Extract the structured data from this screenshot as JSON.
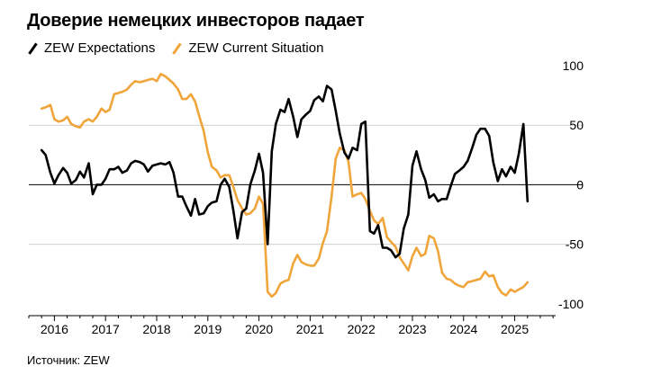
{
  "header": {
    "title": "Доверие немецких инвесторов падает"
  },
  "legend": [
    {
      "label": "ZEW Expectations",
      "color": "#000000"
    },
    {
      "label": "ZEW Current Situation",
      "color": "#f0a53a"
    }
  ],
  "footer": {
    "source": "Источник: ZEW"
  },
  "chart_data": {
    "type": "line",
    "title": "Доверие немецких инвесторов падает",
    "xlim": [
      2015.5,
      2025.8
    ],
    "ylim": [
      -110,
      100
    ],
    "y_ticks": [
      100,
      50,
      0,
      -50,
      -100
    ],
    "y_tick_labels": [
      "100",
      "50",
      "0",
      "-50",
      "-100"
    ],
    "x_ticks": [
      2016,
      2017,
      2018,
      2019,
      2020,
      2021,
      2022,
      2023,
      2024,
      2025
    ],
    "x_tick_labels": [
      "2016",
      "2017",
      "2018",
      "2019",
      "2020",
      "2021",
      "2022",
      "2023",
      "2024",
      "2025"
    ],
    "grid": "horizontal at 50 and -50; zero line emphasized",
    "y_axis_position": "right",
    "series": [
      {
        "name": "ZEW Expectations",
        "color": "#000000",
        "points": [
          [
            2015.75,
            29
          ],
          [
            2015.83,
            25
          ],
          [
            2015.92,
            10
          ],
          [
            2016.0,
            1
          ],
          [
            2016.08,
            8
          ],
          [
            2016.17,
            14
          ],
          [
            2016.25,
            10
          ],
          [
            2016.33,
            1
          ],
          [
            2016.42,
            4
          ],
          [
            2016.5,
            11
          ],
          [
            2016.58,
            6
          ],
          [
            2016.67,
            18
          ],
          [
            2016.75,
            -8
          ],
          [
            2016.83,
            0
          ],
          [
            2016.92,
            0
          ],
          [
            2017.0,
            5
          ],
          [
            2017.08,
            13
          ],
          [
            2017.17,
            13
          ],
          [
            2017.25,
            15
          ],
          [
            2017.33,
            10
          ],
          [
            2017.42,
            12
          ],
          [
            2017.5,
            18
          ],
          [
            2017.58,
            20
          ],
          [
            2017.67,
            19
          ],
          [
            2017.75,
            17
          ],
          [
            2017.83,
            11
          ],
          [
            2017.92,
            16
          ],
          [
            2018.0,
            17
          ],
          [
            2018.08,
            18
          ],
          [
            2018.17,
            17
          ],
          [
            2018.25,
            19
          ],
          [
            2018.33,
            10
          ],
          [
            2018.42,
            -10
          ],
          [
            2018.5,
            -10
          ],
          [
            2018.58,
            -18
          ],
          [
            2018.67,
            -26
          ],
          [
            2018.75,
            -12
          ],
          [
            2018.83,
            -25
          ],
          [
            2018.92,
            -24
          ],
          [
            2019.0,
            -18
          ],
          [
            2019.08,
            -15
          ],
          [
            2019.17,
            -14
          ],
          [
            2019.25,
            0
          ],
          [
            2019.33,
            5
          ],
          [
            2019.42,
            -2
          ],
          [
            2019.5,
            -22
          ],
          [
            2019.58,
            -45
          ],
          [
            2019.67,
            -23
          ],
          [
            2019.75,
            -20
          ],
          [
            2019.83,
            0
          ],
          [
            2019.92,
            12
          ],
          [
            2020.0,
            26
          ],
          [
            2020.08,
            10
          ],
          [
            2020.17,
            -50
          ],
          [
            2020.25,
            28
          ],
          [
            2020.33,
            51
          ],
          [
            2020.42,
            63
          ],
          [
            2020.5,
            61
          ],
          [
            2020.58,
            72
          ],
          [
            2020.67,
            57
          ],
          [
            2020.75,
            40
          ],
          [
            2020.83,
            55
          ],
          [
            2020.92,
            59
          ],
          [
            2021.0,
            62
          ],
          [
            2021.08,
            71
          ],
          [
            2021.17,
            74
          ],
          [
            2021.25,
            70
          ],
          [
            2021.33,
            83
          ],
          [
            2021.42,
            80
          ],
          [
            2021.5,
            62
          ],
          [
            2021.58,
            43
          ],
          [
            2021.67,
            27
          ],
          [
            2021.75,
            22
          ],
          [
            2021.83,
            31
          ],
          [
            2021.92,
            29
          ],
          [
            2022.0,
            51
          ],
          [
            2022.08,
            53
          ],
          [
            2022.17,
            -39
          ],
          [
            2022.25,
            -41
          ],
          [
            2022.33,
            -34
          ],
          [
            2022.42,
            -53
          ],
          [
            2022.5,
            -53
          ],
          [
            2022.58,
            -55
          ],
          [
            2022.67,
            -61
          ],
          [
            2022.75,
            -58
          ],
          [
            2022.83,
            -37
          ],
          [
            2022.92,
            -25
          ],
          [
            2023.0,
            16
          ],
          [
            2023.08,
            28
          ],
          [
            2023.17,
            13
          ],
          [
            2023.25,
            4
          ],
          [
            2023.33,
            -11
          ],
          [
            2023.42,
            -8
          ],
          [
            2023.5,
            -14
          ],
          [
            2023.58,
            -12
          ],
          [
            2023.67,
            -12
          ],
          [
            2023.75,
            -1
          ],
          [
            2023.83,
            9
          ],
          [
            2023.92,
            12
          ],
          [
            2024.0,
            15
          ],
          [
            2024.08,
            20
          ],
          [
            2024.17,
            31
          ],
          [
            2024.25,
            42
          ],
          [
            2024.33,
            47
          ],
          [
            2024.42,
            47
          ],
          [
            2024.5,
            41
          ],
          [
            2024.58,
            19
          ],
          [
            2024.67,
            3
          ],
          [
            2024.75,
            13
          ],
          [
            2024.83,
            7
          ],
          [
            2024.92,
            15
          ],
          [
            2025.0,
            10
          ],
          [
            2025.08,
            26
          ],
          [
            2025.17,
            51
          ],
          [
            2025.25,
            -14
          ]
        ]
      },
      {
        "name": "ZEW Current Situation",
        "color": "#f0a53a",
        "points": [
          [
            2015.75,
            64
          ],
          [
            2015.83,
            65
          ],
          [
            2015.92,
            67
          ],
          [
            2016.0,
            55
          ],
          [
            2016.08,
            53
          ],
          [
            2016.17,
            54
          ],
          [
            2016.25,
            57
          ],
          [
            2016.33,
            51
          ],
          [
            2016.42,
            49
          ],
          [
            2016.5,
            48
          ],
          [
            2016.58,
            53
          ],
          [
            2016.67,
            55
          ],
          [
            2016.75,
            53
          ],
          [
            2016.83,
            57
          ],
          [
            2016.92,
            64
          ],
          [
            2017.0,
            61
          ],
          [
            2017.08,
            63
          ],
          [
            2017.17,
            76
          ],
          [
            2017.25,
            77
          ],
          [
            2017.33,
            78
          ],
          [
            2017.42,
            80
          ],
          [
            2017.5,
            84
          ],
          [
            2017.58,
            87
          ],
          [
            2017.67,
            86
          ],
          [
            2017.75,
            87
          ],
          [
            2017.83,
            88
          ],
          [
            2017.92,
            89
          ],
          [
            2018.0,
            87
          ],
          [
            2018.08,
            93
          ],
          [
            2018.17,
            91
          ],
          [
            2018.25,
            88
          ],
          [
            2018.33,
            85
          ],
          [
            2018.42,
            80
          ],
          [
            2018.5,
            72
          ],
          [
            2018.58,
            72
          ],
          [
            2018.67,
            76
          ],
          [
            2018.75,
            70
          ],
          [
            2018.83,
            58
          ],
          [
            2018.92,
            45
          ],
          [
            2019.0,
            27
          ],
          [
            2019.08,
            15
          ],
          [
            2019.17,
            12
          ],
          [
            2019.25,
            6
          ],
          [
            2019.33,
            8
          ],
          [
            2019.42,
            8
          ],
          [
            2019.5,
            -2
          ],
          [
            2019.58,
            -13
          ],
          [
            2019.67,
            -20
          ],
          [
            2019.75,
            -25
          ],
          [
            2019.83,
            -24
          ],
          [
            2019.92,
            -20
          ],
          [
            2020.0,
            -10
          ],
          [
            2020.08,
            -16
          ],
          [
            2020.17,
            -90
          ],
          [
            2020.25,
            -94
          ],
          [
            2020.33,
            -91
          ],
          [
            2020.42,
            -83
          ],
          [
            2020.5,
            -81
          ],
          [
            2020.58,
            -80
          ],
          [
            2020.67,
            -66
          ],
          [
            2020.75,
            -59
          ],
          [
            2020.83,
            -65
          ],
          [
            2020.92,
            -67
          ],
          [
            2021.0,
            -68
          ],
          [
            2021.08,
            -68
          ],
          [
            2021.17,
            -62
          ],
          [
            2021.25,
            -49
          ],
          [
            2021.33,
            -39
          ],
          [
            2021.42,
            -10
          ],
          [
            2021.5,
            22
          ],
          [
            2021.58,
            31
          ],
          [
            2021.67,
            29
          ],
          [
            2021.75,
            19
          ],
          [
            2021.83,
            -10
          ],
          [
            2021.92,
            -8
          ],
          [
            2022.0,
            -7
          ],
          [
            2022.08,
            -12
          ],
          [
            2022.17,
            -22
          ],
          [
            2022.25,
            -30
          ],
          [
            2022.33,
            -33
          ],
          [
            2022.42,
            -28
          ],
          [
            2022.5,
            -44
          ],
          [
            2022.58,
            -48
          ],
          [
            2022.67,
            -52
          ],
          [
            2022.75,
            -61
          ],
          [
            2022.83,
            -66
          ],
          [
            2022.92,
            -72
          ],
          [
            2023.0,
            -60
          ],
          [
            2023.08,
            -53
          ],
          [
            2023.17,
            -60
          ],
          [
            2023.25,
            -58
          ],
          [
            2023.33,
            -43
          ],
          [
            2023.42,
            -45
          ],
          [
            2023.5,
            -56
          ],
          [
            2023.58,
            -74
          ],
          [
            2023.67,
            -79
          ],
          [
            2023.75,
            -80
          ],
          [
            2023.83,
            -83
          ],
          [
            2023.92,
            -85
          ],
          [
            2024.0,
            -86
          ],
          [
            2024.08,
            -82
          ],
          [
            2024.17,
            -81
          ],
          [
            2024.25,
            -80
          ],
          [
            2024.33,
            -79
          ],
          [
            2024.42,
            -73
          ],
          [
            2024.5,
            -77
          ],
          [
            2024.58,
            -76
          ],
          [
            2024.67,
            -86
          ],
          [
            2024.75,
            -91
          ],
          [
            2024.83,
            -93
          ],
          [
            2024.92,
            -88
          ],
          [
            2025.0,
            -90
          ],
          [
            2025.08,
            -88
          ],
          [
            2025.17,
            -86
          ],
          [
            2025.25,
            -82
          ]
        ]
      }
    ]
  }
}
